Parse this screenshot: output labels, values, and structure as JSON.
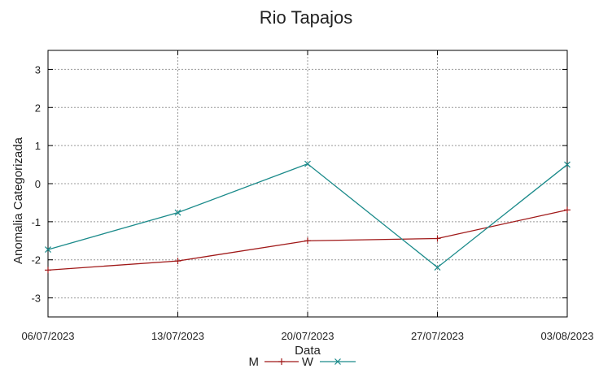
{
  "chart_data": {
    "type": "line",
    "title": "Rio Tapajos",
    "xlabel": "Data",
    "ylabel": "Anomalia Categorizada",
    "categories": [
      "06/07/2023",
      "13/07/2023",
      "20/07/2023",
      "27/07/2023",
      "03/08/2023"
    ],
    "ylim": [
      -3.5,
      3.5
    ],
    "yticks": [
      3,
      2,
      1,
      0,
      -1,
      -2,
      -3
    ],
    "grid": true,
    "legend_position": "bottom",
    "series": [
      {
        "name": "M",
        "color": "#a01818",
        "marker": "plus",
        "values": [
          -2.27,
          -2.03,
          -1.5,
          -1.44,
          -0.69
        ]
      },
      {
        "name": "W",
        "color": "#1a8a8a",
        "marker": "x",
        "values": [
          -1.73,
          -0.76,
          0.52,
          -2.2,
          0.5
        ]
      }
    ]
  }
}
